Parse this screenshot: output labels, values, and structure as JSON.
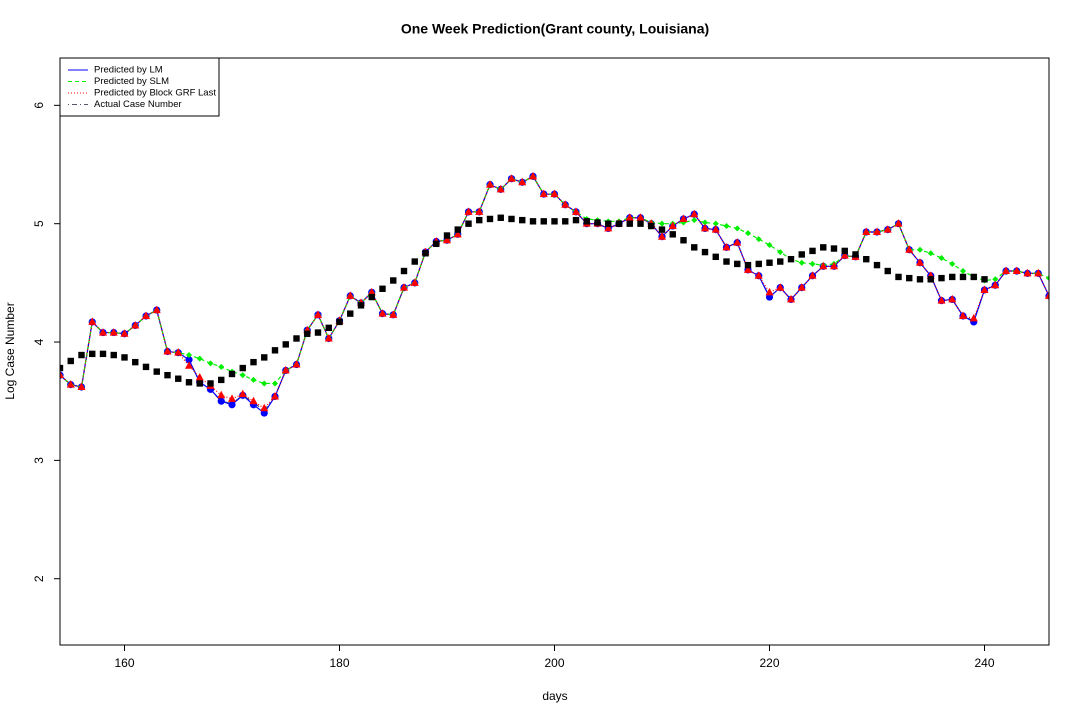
{
  "chart_data": {
    "type": "line",
    "title": "One Week Prediction(Grant county, Louisiana)",
    "x_label": "days",
    "y_label": "Log Case Number",
    "xlim": [
      154,
      246
    ],
    "xticks": [
      160,
      180,
      200,
      220,
      240
    ],
    "ylim": [
      1.44,
      6.4
    ],
    "yticks": [
      2,
      3,
      4,
      5,
      6
    ],
    "legend": "top-left",
    "x": [
      154,
      155,
      156,
      157,
      158,
      159,
      160,
      161,
      162,
      163,
      164,
      165,
      166,
      167,
      168,
      169,
      170,
      171,
      172,
      173,
      174,
      175,
      176,
      177,
      178,
      179,
      180,
      181,
      182,
      183,
      184,
      185,
      186,
      187,
      188,
      189,
      190,
      191,
      192,
      193,
      194,
      195,
      196,
      197,
      198,
      199,
      200,
      201,
      202,
      203,
      204,
      205,
      206,
      207,
      208,
      209,
      210,
      211,
      212,
      213,
      214,
      215,
      216,
      217,
      218,
      219,
      220,
      221,
      222,
      223,
      224,
      225,
      226,
      227,
      228,
      229,
      230,
      231,
      232,
      233,
      234,
      235,
      236,
      237,
      238,
      239,
      240,
      241,
      242,
      243,
      244,
      245,
      246
    ],
    "series": [
      {
        "name": "Actual Case Number",
        "color": "#555566",
        "dash": "dotdash",
        "marker": "none",
        "values": [
          3.72,
          3.64,
          3.62,
          4.17,
          4.08,
          4.08,
          4.07,
          4.14,
          4.22,
          4.27,
          3.92,
          3.91,
          3.85,
          3.66,
          3.6,
          3.5,
          3.48,
          3.55,
          3.49,
          3.42,
          3.54,
          3.76,
          3.81,
          4.1,
          4.23,
          4.03,
          4.18,
          4.39,
          4.33,
          4.42,
          4.24,
          4.23,
          4.46,
          4.5,
          4.76,
          4.85,
          4.86,
          4.91,
          5.1,
          5.1,
          5.33,
          5.29,
          5.38,
          5.35,
          5.4,
          5.25,
          5.25,
          5.16,
          5.1,
          5.0,
          5.0,
          4.96,
          5.0,
          5.05,
          5.05,
          5.0,
          4.89,
          4.98,
          5.04,
          5.08,
          4.96,
          4.95,
          4.8,
          4.84,
          4.61,
          4.56,
          4.38,
          4.46,
          4.36,
          4.46,
          4.56,
          4.64,
          4.64,
          4.73,
          4.72,
          4.93,
          4.93,
          4.95,
          5.0,
          4.78,
          4.67,
          4.56,
          4.35,
          4.36,
          4.22,
          4.18,
          4.44,
          4.48,
          4.6,
          4.6,
          4.58,
          4.58,
          4.39
        ]
      },
      {
        "name": "Predicted by LM",
        "color": "#0000ff",
        "dash": "solid",
        "marker": "circle",
        "values": [
          3.72,
          3.64,
          3.62,
          4.17,
          4.08,
          4.08,
          4.07,
          4.14,
          4.22,
          4.27,
          3.92,
          3.91,
          3.85,
          3.66,
          3.6,
          3.5,
          3.47,
          3.55,
          3.47,
          3.4,
          3.54,
          3.76,
          3.81,
          4.1,
          4.23,
          4.03,
          4.18,
          4.39,
          4.33,
          4.42,
          4.24,
          4.23,
          4.46,
          4.5,
          4.76,
          4.85,
          4.86,
          4.91,
          5.1,
          5.1,
          5.33,
          5.29,
          5.38,
          5.35,
          5.4,
          5.25,
          5.25,
          5.16,
          5.1,
          5.0,
          5.0,
          4.96,
          5.0,
          5.05,
          5.05,
          5.0,
          4.89,
          4.98,
          5.04,
          5.08,
          4.96,
          4.95,
          4.8,
          4.84,
          4.61,
          4.56,
          4.38,
          4.46,
          4.36,
          4.46,
          4.56,
          4.64,
          4.64,
          4.73,
          4.72,
          4.93,
          4.93,
          4.95,
          5.0,
          4.78,
          4.67,
          4.56,
          4.35,
          4.36,
          4.22,
          4.17,
          4.44,
          4.48,
          4.6,
          4.6,
          4.58,
          4.58,
          4.39
        ]
      },
      {
        "name": "Predicted by SLM",
        "color": "#00ee00",
        "dash": "dashed",
        "marker": "diamond",
        "values": [
          3.72,
          3.64,
          3.62,
          4.17,
          4.08,
          4.08,
          4.07,
          4.14,
          4.22,
          4.27,
          3.92,
          3.91,
          3.89,
          3.86,
          3.82,
          3.79,
          3.75,
          3.72,
          3.68,
          3.65,
          3.65,
          3.76,
          3.81,
          4.1,
          4.23,
          4.03,
          4.18,
          4.39,
          4.33,
          4.42,
          4.24,
          4.23,
          4.46,
          4.5,
          4.76,
          4.85,
          4.86,
          4.91,
          5.1,
          5.1,
          5.33,
          5.29,
          5.38,
          5.35,
          5.4,
          5.25,
          5.25,
          5.16,
          5.1,
          5.04,
          5.03,
          5.02,
          5.02,
          5.05,
          5.05,
          5.01,
          5.0,
          5.0,
          5.01,
          5.03,
          5.01,
          5.0,
          4.98,
          4.96,
          4.92,
          4.87,
          4.82,
          4.76,
          4.7,
          4.67,
          4.66,
          4.65,
          4.66,
          4.73,
          4.72,
          4.93,
          4.93,
          4.95,
          5.0,
          4.78,
          4.78,
          4.75,
          4.71,
          4.66,
          4.6,
          4.55,
          4.52,
          4.53,
          4.6,
          4.6,
          4.58,
          4.58,
          4.54
        ]
      },
      {
        "name": "Predicted by Block GRF Last",
        "color": "#ff0000",
        "dash": "dotted",
        "marker": "triangle",
        "values": [
          3.72,
          3.64,
          3.62,
          4.17,
          4.08,
          4.08,
          4.07,
          4.14,
          4.22,
          4.27,
          3.92,
          3.91,
          3.8,
          3.7,
          3.63,
          3.55,
          3.52,
          3.56,
          3.5,
          3.44,
          3.54,
          3.76,
          3.81,
          4.1,
          4.23,
          4.03,
          4.18,
          4.39,
          4.33,
          4.42,
          4.24,
          4.23,
          4.46,
          4.5,
          4.76,
          4.85,
          4.86,
          4.91,
          5.1,
          5.1,
          5.33,
          5.29,
          5.38,
          5.35,
          5.4,
          5.25,
          5.25,
          5.16,
          5.1,
          5.0,
          5.0,
          4.96,
          5.0,
          5.05,
          5.05,
          5.0,
          4.89,
          4.98,
          5.04,
          5.08,
          4.96,
          4.95,
          4.8,
          4.84,
          4.61,
          4.56,
          4.42,
          4.46,
          4.36,
          4.46,
          4.56,
          4.64,
          4.64,
          4.73,
          4.72,
          4.93,
          4.93,
          4.95,
          5.0,
          4.78,
          4.67,
          4.56,
          4.35,
          4.36,
          4.22,
          4.2,
          4.44,
          4.48,
          4.6,
          4.6,
          4.58,
          4.58,
          4.39
        ]
      },
      {
        "color": "#000000",
        "dash": "none",
        "marker": "square",
        "values": [
          3.78,
          3.84,
          3.89,
          3.9,
          3.9,
          3.89,
          3.87,
          3.83,
          3.79,
          3.75,
          3.72,
          3.69,
          3.66,
          3.65,
          3.65,
          3.68,
          3.73,
          3.78,
          3.83,
          3.87,
          3.93,
          3.98,
          4.03,
          4.07,
          4.08,
          4.12,
          4.17,
          4.24,
          4.31,
          4.38,
          4.45,
          4.52,
          4.6,
          4.68,
          4.75,
          4.83,
          4.9,
          4.95,
          5.0,
          5.03,
          5.04,
          5.05,
          5.04,
          5.03,
          5.02,
          5.02,
          5.02,
          5.02,
          5.03,
          5.02,
          5.01,
          5.0,
          5.0,
          5.0,
          5.0,
          4.98,
          4.95,
          4.91,
          4.86,
          4.8,
          4.76,
          4.72,
          4.68,
          4.66,
          4.65,
          4.66,
          4.67,
          4.68,
          4.7,
          4.74,
          4.77,
          4.8,
          4.79,
          4.77,
          4.74,
          4.7,
          4.65,
          4.6,
          4.55,
          4.54,
          4.53,
          4.53,
          4.54,
          4.55,
          4.55,
          4.55,
          4.53,
          null,
          null,
          null,
          null,
          null,
          null
        ]
      }
    ]
  }
}
